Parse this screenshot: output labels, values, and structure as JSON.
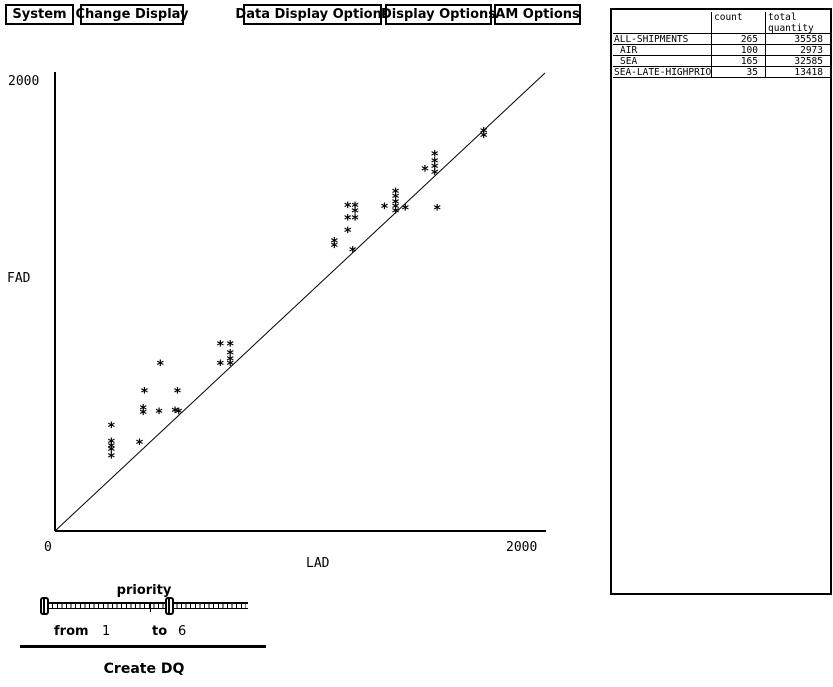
{
  "menu": {
    "items": [
      {
        "label": "System"
      },
      {
        "label": "Change Display"
      },
      {
        "label": "Data Display Options"
      },
      {
        "label": "Display Options"
      },
      {
        "label": "AM Options"
      }
    ]
  },
  "chart_data": {
    "type": "scatter",
    "title": "",
    "xlabel": "LAD",
    "ylabel": "FAD",
    "xlim": [
      0,
      2000
    ],
    "ylim": [
      0,
      2000
    ],
    "x_ticks": [
      {
        "value": 0,
        "label": "0"
      },
      {
        "value": 2000,
        "label": "2000"
      }
    ],
    "y_ticks": [
      {
        "value": 2000,
        "label": "2000"
      }
    ],
    "grid": false,
    "marker": "*",
    "reference_line": {
      "from": [
        0,
        0
      ],
      "to": [
        2000,
        2000
      ]
    },
    "points": [
      [
        1750,
        1740
      ],
      [
        1750,
        1720
      ],
      [
        1550,
        1640
      ],
      [
        1550,
        1610
      ],
      [
        1550,
        1585
      ],
      [
        1550,
        1560
      ],
      [
        1510,
        1575
      ],
      [
        1560,
        1405
      ],
      [
        1390,
        1475
      ],
      [
        1390,
        1455
      ],
      [
        1390,
        1430
      ],
      [
        1390,
        1410
      ],
      [
        1390,
        1390
      ],
      [
        1345,
        1410
      ],
      [
        1430,
        1405
      ],
      [
        1195,
        1415
      ],
      [
        1225,
        1415
      ],
      [
        1225,
        1390
      ],
      [
        1195,
        1360
      ],
      [
        1225,
        1360
      ],
      [
        1195,
        1305
      ],
      [
        1140,
        1260
      ],
      [
        1140,
        1240
      ],
      [
        1215,
        1220
      ],
      [
        675,
        810
      ],
      [
        715,
        810
      ],
      [
        715,
        770
      ],
      [
        715,
        745
      ],
      [
        675,
        725
      ],
      [
        715,
        725
      ],
      [
        430,
        725
      ],
      [
        365,
        605
      ],
      [
        500,
        605
      ],
      [
        360,
        530
      ],
      [
        360,
        510
      ],
      [
        425,
        515
      ],
      [
        490,
        520
      ],
      [
        505,
        515
      ],
      [
        230,
        455
      ],
      [
        230,
        385
      ],
      [
        230,
        365
      ],
      [
        230,
        350
      ],
      [
        230,
        320
      ],
      [
        345,
        380
      ]
    ]
  },
  "table": {
    "header": {
      "count": "count",
      "total_line1": "total",
      "total_line2": "quantity"
    },
    "rows": [
      {
        "name": "ALL-SHIPMENTS",
        "indent": false,
        "count": "265",
        "total_quantity": "35558"
      },
      {
        "name": "AIR",
        "indent": true,
        "count": "100",
        "total_quantity": "2973"
      },
      {
        "name": "SEA",
        "indent": true,
        "count": "165",
        "total_quantity": "32585"
      },
      {
        "name": "SEA-LATE-HIGHPRIO",
        "indent": false,
        "count": "35",
        "total_quantity": "13418"
      }
    ]
  },
  "slider": {
    "label": "priority",
    "from_label": "from",
    "from_value": "1",
    "to_label": "to",
    "to_value": "6"
  },
  "create_button": {
    "label": "Create DQ"
  },
  "colors": {
    "fg": "#000000",
    "bg": "#ffffff"
  }
}
